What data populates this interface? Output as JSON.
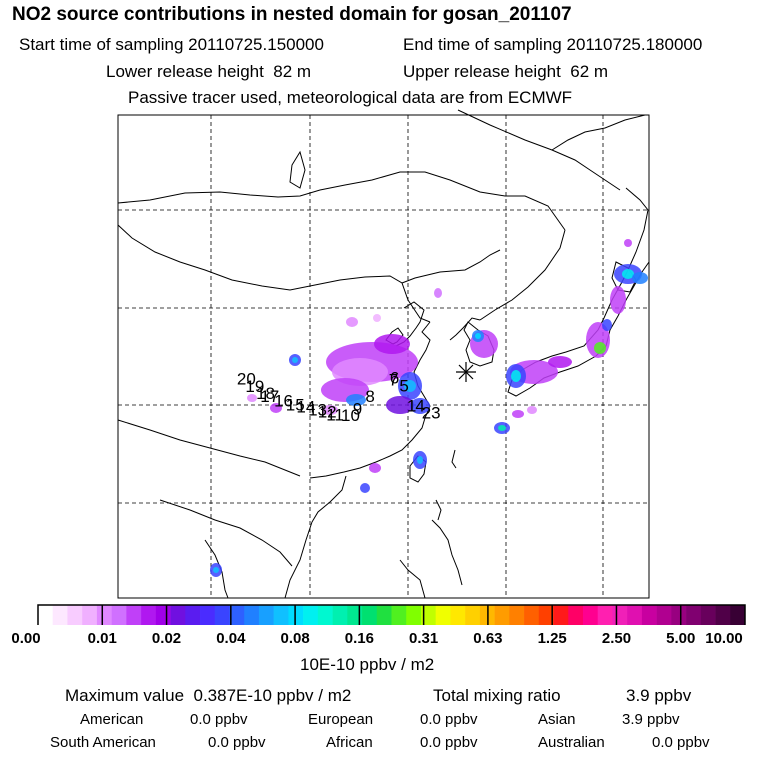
{
  "title": "NO2 source contributions in nested domain for gosan_201107",
  "header": {
    "start_label": "Start time of sampling",
    "start_value": "20110725.150000",
    "end_label": "End time of sampling",
    "end_value": "20110725.180000",
    "lower_label": "Lower release height",
    "lower_value": "82 m",
    "upper_label": "Upper release height",
    "upper_value": "62 m",
    "note": "Passive tracer used, meteorological data are from ECMWF"
  },
  "map": {
    "trajectory_points": [
      {
        "label": "1",
        "lon": 127.2,
        "lat": 29.3
      },
      {
        "label": "4",
        "lon": 128.0,
        "lat": 29.3
      },
      {
        "label": "23",
        "lon": 128.6,
        "lat": 28.6
      },
      {
        "label": "5",
        "lon": 126.5,
        "lat": 31.4
      },
      {
        "label": "6",
        "lon": 125.6,
        "lat": 32.2
      },
      {
        "label": "7",
        "lon": 125.5,
        "lat": 32.0
      },
      {
        "label": "8",
        "lon": 123.3,
        "lat": 30.3
      },
      {
        "label": "9",
        "lon": 122.1,
        "lat": 29.0
      },
      {
        "label": "10",
        "lon": 121.0,
        "lat": 28.3
      },
      {
        "label": "11",
        "lon": 119.6,
        "lat": 28.4
      },
      {
        "label": "12",
        "lon": 118.8,
        "lat": 28.7
      },
      {
        "label": "13",
        "lon": 117.9,
        "lat": 28.9
      },
      {
        "label": "14",
        "lon": 116.8,
        "lat": 29.2
      },
      {
        "label": "15",
        "lon": 115.8,
        "lat": 29.4
      },
      {
        "label": "16",
        "lon": 114.7,
        "lat": 29.8
      },
      {
        "label": "17",
        "lon": 113.4,
        "lat": 30.3
      },
      {
        "label": "18",
        "lon": 113.0,
        "lat": 30.6
      },
      {
        "label": "19",
        "lon": 112.0,
        "lat": 31.3
      },
      {
        "label": "20",
        "lon": 111.2,
        "lat": 32.1
      }
    ],
    "receptor": "Gosan"
  },
  "colorbar": {
    "labels": [
      "0.00",
      "0.01",
      "0.02",
      "0.04",
      "0.08",
      "0.16",
      "0.31",
      "0.63",
      "1.25",
      "2.50",
      "5.00",
      "10.00"
    ],
    "colors": [
      "#ffffff",
      "#fde8ff",
      "#f8ccff",
      "#f0b0ff",
      "#e088ff",
      "#d070ff",
      "#c040f8",
      "#b018f0",
      "#a000e8",
      "#7010e0",
      "#5a1cf0",
      "#4a2cff",
      "#3a44ff",
      "#2e60ff",
      "#2080ff",
      "#18a0ff",
      "#10c0ff",
      "#00dcff",
      "#00f0f0",
      "#00f8d0",
      "#00f0b0",
      "#00e890",
      "#00e070",
      "#20e040",
      "#50f020",
      "#80ff00",
      "#c0ff00",
      "#f0ff00",
      "#ffe800",
      "#ffd000",
      "#ffb800",
      "#ff9c00",
      "#ff8000",
      "#ff6000",
      "#ff4000",
      "#ff1a1a",
      "#ff0066",
      "#ff0090",
      "#ff20b0",
      "#f020b8",
      "#e010b0",
      "#c800a0",
      "#b00090",
      "#980080",
      "#800070",
      "#68005c",
      "#500048",
      "#380034"
    ],
    "units": "10E-10 ppbv / m2"
  },
  "footer": {
    "max_label": "Maximum value",
    "max_value": "0.387E-10 ppbv / m2",
    "total_label": "Total mixing ratio",
    "total_value": "3.9 ppbv",
    "regions": [
      {
        "name": "American",
        "value": "0.0 ppbv"
      },
      {
        "name": "European",
        "value": "0.0 ppbv"
      },
      {
        "name": "Asian",
        "value": "3.9 ppbv"
      },
      {
        "name": "South American",
        "value": "0.0 ppbv"
      },
      {
        "name": "African",
        "value": "0.0 ppbv"
      },
      {
        "name": "Australian",
        "value": "0.0 ppbv"
      }
    ]
  }
}
